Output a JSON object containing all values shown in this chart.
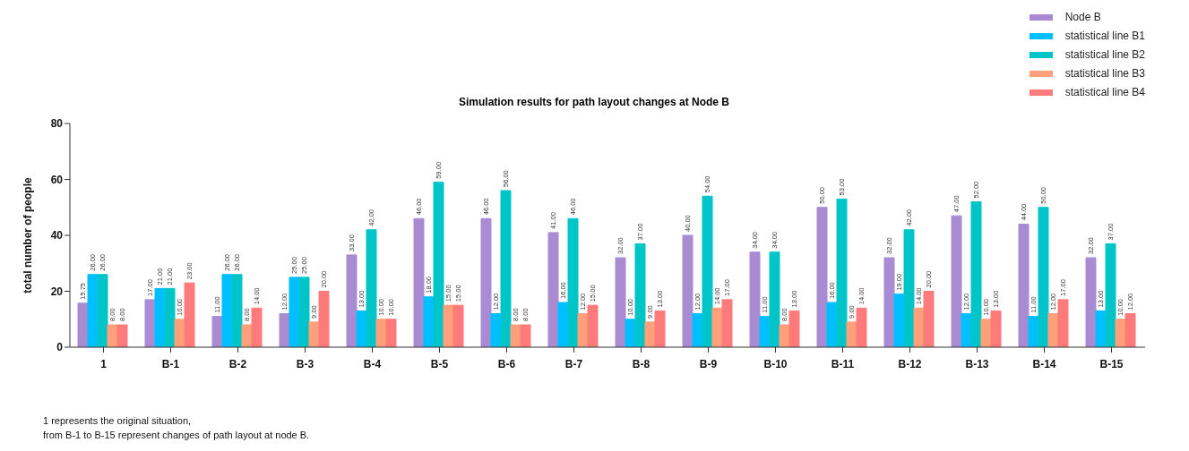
{
  "chart_data": {
    "type": "bar",
    "title": "Simulation results for path layout changes at Node B",
    "ylabel": "total number of people",
    "categories": [
      "1",
      "B-1",
      "B-2",
      "B-3",
      "B-4",
      "B-5",
      "B-6",
      "B-7",
      "B-8",
      "B-9",
      "B-10",
      "B-11",
      "B-12",
      "B-13",
      "B-14",
      "B-15"
    ],
    "series": [
      {
        "name": "Node B",
        "color": "#a98bd4",
        "values": [
          15.75,
          17,
          11,
          12,
          33,
          46,
          46,
          41,
          32,
          40,
          34,
          50,
          32,
          47,
          44,
          32
        ],
        "value_labels": [
          "15.75",
          "17.00",
          "11.00",
          "12.00",
          "33.00",
          "46.00",
          "46.00",
          "41.00",
          "32.00",
          "40.00",
          "34.00",
          "50.00",
          "32.00",
          "47.00",
          "44.00",
          "32.00"
        ]
      },
      {
        "name": "statistical line B1",
        "color": "#00bfff",
        "values": [
          26,
          21,
          26,
          25,
          13,
          18,
          12,
          16,
          10,
          12,
          11,
          16,
          19,
          12,
          11,
          13
        ],
        "value_labels": [
          "26.00",
          "21.00",
          "26.00",
          "25.00",
          "13.00",
          "18.00",
          "12.00",
          "16.00",
          "10.00",
          "12.00",
          "11.00",
          "16.00",
          "19.00",
          "12.00",
          "11.00",
          "13.00"
        ]
      },
      {
        "name": "statistical line B2",
        "color": "#00c5c8",
        "values": [
          26,
          21,
          26,
          25,
          42,
          59,
          56,
          46,
          37,
          54,
          34,
          53,
          42,
          52,
          50,
          37
        ],
        "value_labels": [
          "26.00",
          "21.00",
          "26.00",
          "25.00",
          "42.00",
          "59.00",
          "56.00",
          "46.00",
          "37.00",
          "54.00",
          "34.00",
          "53.00",
          "42.00",
          "52.00",
          "50.00",
          "37.00"
        ]
      },
      {
        "name": "statistical line B3",
        "color": "#ffa07a",
        "values": [
          8,
          10,
          8,
          9,
          10,
          15,
          8,
          12,
          9,
          14,
          8,
          9,
          14,
          10,
          12,
          10
        ],
        "value_labels": [
          "8.00",
          "10.00",
          "8.00",
          "9.00",
          "10.00",
          "15.00",
          "8.00",
          "12.00",
          "9.00",
          "14.00",
          "8.00",
          "9.00",
          "14.00",
          "10.00",
          "12.00",
          "10.00"
        ]
      },
      {
        "name": "statistical line B4",
        "color": "#ff7b7b",
        "values": [
          8,
          23,
          14,
          20,
          10,
          15,
          8,
          15,
          13,
          17,
          13,
          14,
          20,
          13,
          17,
          12
        ],
        "value_labels": [
          "8.00",
          "23.00",
          "14.00",
          "20.00",
          "10.00",
          "15.00",
          "8.00",
          "15.00",
          "13.00",
          "17.00",
          "13.00",
          "14.00",
          "20.00",
          "13.00",
          "17.00",
          "12.00"
        ]
      }
    ],
    "ylim": [
      0,
      80
    ],
    "yticks": [
      0,
      20,
      40,
      60,
      80
    ],
    "grid": false,
    "legend": "top right",
    "annotations": [
      "1 represents the original situation,",
      "from B-1 to B-15 represent changes of path layout at node B."
    ]
  }
}
